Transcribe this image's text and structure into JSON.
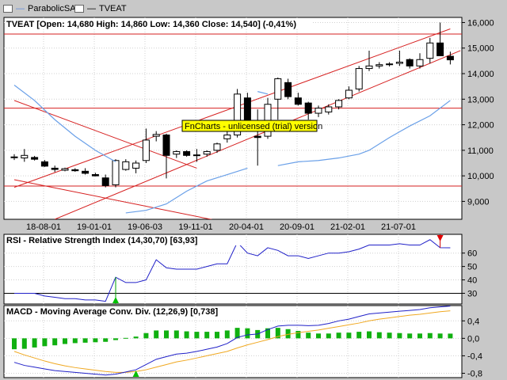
{
  "legend": {
    "items": [
      {
        "label": "ParabolicSAR",
        "color": "#6aa0e8"
      },
      {
        "label": "TVEAT",
        "color": "#000000"
      }
    ]
  },
  "watermark": "FnCharts - unlicensed (trial) version",
  "chart_data": [
    {
      "type": "candlestick",
      "title": "TVEAT [Open: 14,680  High: 14,860  Low: 14,360  Close: 14,540]  (-0,41%)",
      "ylim": [
        8.3,
        16.2
      ],
      "yticks": [
        "9,000",
        "10,000",
        "11,000",
        "12,000",
        "13,000",
        "14,000",
        "15,000",
        "16,000"
      ],
      "xticks": [
        "18-08-01",
        "19-01-01",
        "19-06-03",
        "19-11-01",
        "20-04-01",
        "20-09-01",
        "21-02-01",
        "21-07-01"
      ],
      "candles": [
        {
          "o": 10.72,
          "h": 10.85,
          "l": 10.62,
          "c": 10.74
        },
        {
          "o": 10.7,
          "h": 11.05,
          "l": 10.55,
          "c": 10.8
        },
        {
          "o": 10.72,
          "h": 10.78,
          "l": 10.6,
          "c": 10.65
        },
        {
          "o": 10.55,
          "h": 10.62,
          "l": 10.35,
          "c": 10.38
        },
        {
          "o": 10.3,
          "h": 10.4,
          "l": 10.15,
          "c": 10.25
        },
        {
          "o": 10.22,
          "h": 10.32,
          "l": 10.18,
          "c": 10.28
        },
        {
          "o": 10.24,
          "h": 10.3,
          "l": 10.16,
          "c": 10.2
        },
        {
          "o": 10.18,
          "h": 10.3,
          "l": 10.05,
          "c": 10.1
        },
        {
          "o": 10.05,
          "h": 10.12,
          "l": 9.98,
          "c": 10.0
        },
        {
          "o": 9.92,
          "h": 10.05,
          "l": 9.55,
          "c": 9.62
        },
        {
          "o": 9.65,
          "h": 10.65,
          "l": 9.55,
          "c": 10.6
        },
        {
          "o": 10.25,
          "h": 10.65,
          "l": 10.2,
          "c": 10.55
        },
        {
          "o": 10.3,
          "h": 10.6,
          "l": 10.1,
          "c": 10.5
        },
        {
          "o": 10.6,
          "h": 11.85,
          "l": 10.5,
          "c": 11.4
        },
        {
          "o": 11.55,
          "h": 11.75,
          "l": 11.35,
          "c": 11.62
        },
        {
          "o": 11.6,
          "h": 11.65,
          "l": 9.9,
          "c": 10.8
        },
        {
          "o": 10.85,
          "h": 11.0,
          "l": 10.7,
          "c": 10.95
        },
        {
          "o": 10.95,
          "h": 11.0,
          "l": 10.75,
          "c": 10.8
        },
        {
          "o": 10.82,
          "h": 11.05,
          "l": 10.55,
          "c": 10.8
        },
        {
          "o": 10.85,
          "h": 11.0,
          "l": 10.75,
          "c": 10.95
        },
        {
          "o": 11.0,
          "h": 11.3,
          "l": 10.9,
          "c": 11.25
        },
        {
          "o": 11.45,
          "h": 11.85,
          "l": 11.3,
          "c": 11.6
        },
        {
          "o": 11.6,
          "h": 13.4,
          "l": 11.5,
          "c": 13.2
        },
        {
          "o": 13.05,
          "h": 13.25,
          "l": 11.95,
          "c": 12.0
        },
        {
          "o": 11.55,
          "h": 12.6,
          "l": 10.4,
          "c": 11.5
        },
        {
          "o": 11.55,
          "h": 13.05,
          "l": 11.45,
          "c": 12.8
        },
        {
          "o": 13.0,
          "h": 13.85,
          "l": 12.2,
          "c": 13.8
        },
        {
          "o": 13.65,
          "h": 13.8,
          "l": 13.0,
          "c": 13.1
        },
        {
          "o": 13.05,
          "h": 13.25,
          "l": 12.75,
          "c": 12.8
        },
        {
          "o": 12.85,
          "h": 12.9,
          "l": 12.2,
          "c": 12.45
        },
        {
          "o": 12.45,
          "h": 12.75,
          "l": 12.3,
          "c": 12.65
        },
        {
          "o": 12.5,
          "h": 12.8,
          "l": 12.4,
          "c": 12.7
        },
        {
          "o": 12.7,
          "h": 13.0,
          "l": 12.6,
          "c": 12.95
        },
        {
          "o": 13.05,
          "h": 13.5,
          "l": 13.0,
          "c": 13.35
        },
        {
          "o": 13.4,
          "h": 14.3,
          "l": 13.3,
          "c": 14.2
        },
        {
          "o": 14.2,
          "h": 14.9,
          "l": 14.1,
          "c": 14.3
        },
        {
          "o": 14.3,
          "h": 14.45,
          "l": 14.2,
          "c": 14.35
        },
        {
          "o": 14.35,
          "h": 14.45,
          "l": 14.28,
          "c": 14.38
        },
        {
          "o": 14.4,
          "h": 14.9,
          "l": 14.3,
          "c": 14.45
        },
        {
          "o": 14.55,
          "h": 14.6,
          "l": 14.2,
          "c": 14.3
        },
        {
          "o": 14.3,
          "h": 14.8,
          "l": 14.2,
          "c": 14.55
        },
        {
          "o": 14.6,
          "h": 15.4,
          "l": 14.4,
          "c": 15.2
        },
        {
          "o": 15.2,
          "h": 16.0,
          "l": 14.7,
          "c": 14.7
        },
        {
          "o": 14.68,
          "h": 14.86,
          "l": 14.36,
          "c": 14.54
        }
      ],
      "sar": [
        [
          0,
          13.55
        ],
        [
          2,
          12.95
        ],
        [
          4,
          12.2
        ],
        [
          6,
          11.55
        ],
        [
          8,
          11.0
        ],
        [
          10,
          10.55
        ],
        [
          11,
          8.55
        ],
        [
          13,
          8.65
        ],
        [
          15,
          8.9
        ],
        [
          17,
          9.4
        ],
        [
          19,
          9.8
        ],
        [
          21,
          10.05
        ],
        [
          23,
          10.3
        ],
        [
          24,
          13.3
        ],
        [
          25,
          13.2
        ],
        [
          26,
          10.4
        ],
        [
          28,
          10.55
        ],
        [
          30,
          10.6
        ],
        [
          32,
          10.7
        ],
        [
          34,
          10.85
        ],
        [
          35,
          11.0
        ],
        [
          37,
          11.5
        ],
        [
          39,
          11.95
        ],
        [
          41,
          12.35
        ],
        [
          43,
          12.95
        ]
      ],
      "hlines": [
        15.55,
        12.65,
        9.6
      ],
      "trendlines": [
        {
          "a": [
            0,
            9.55
          ],
          "b": [
            43,
            15.75
          ]
        },
        {
          "a": [
            4,
            8.3
          ],
          "b": [
            44,
            14.9
          ]
        },
        {
          "a": [
            0,
            12.95
          ],
          "b": [
            18,
            10.3
          ]
        },
        {
          "a": [
            0,
            9.85
          ],
          "b": [
            20,
            8.25
          ]
        }
      ]
    },
    {
      "type": "line",
      "title": "RSI - Relative Strength Index (14,30,70) [63,93]",
      "ylim": [
        22,
        74
      ],
      "yticks": [
        "30",
        "40",
        "50",
        "60"
      ],
      "levels": [
        30
      ],
      "series": [
        {
          "values": [
            30,
            30,
            30,
            28,
            27,
            26,
            26,
            25,
            25,
            24,
            42,
            38,
            38,
            40,
            55,
            49,
            48,
            48,
            48,
            50,
            52,
            52,
            68,
            60,
            58,
            64,
            62,
            58,
            58,
            56,
            58,
            60,
            60,
            61,
            63,
            66,
            66,
            66,
            67,
            66,
            66,
            70,
            64,
            63.93
          ]
        }
      ],
      "signals": [
        {
          "type": "buy",
          "index": 10
        },
        {
          "type": "sell",
          "index": 42
        }
      ]
    },
    {
      "type": "macd",
      "title": "MACD - Moving Average Conv. Div. (12,26,9) [0,738]",
      "ylim": [
        -0.9,
        0.75
      ],
      "yticks": [
        "0,4",
        "0,0",
        "-0,4",
        "-0,8"
      ],
      "macd": [
        -0.55,
        -0.62,
        -0.66,
        -0.7,
        -0.74,
        -0.76,
        -0.78,
        -0.8,
        -0.82,
        -0.84,
        -0.82,
        -0.77,
        -0.72,
        -0.6,
        -0.48,
        -0.42,
        -0.36,
        -0.34,
        -0.3,
        -0.25,
        -0.2,
        -0.12,
        0.02,
        0.08,
        0.1,
        0.2,
        0.28,
        0.3,
        0.3,
        0.29,
        0.3,
        0.34,
        0.4,
        0.44,
        0.5,
        0.56,
        0.58,
        0.6,
        0.62,
        0.64,
        0.66,
        0.7,
        0.72,
        0.738
      ],
      "signal": [
        -0.3,
        -0.38,
        -0.45,
        -0.52,
        -0.58,
        -0.63,
        -0.67,
        -0.7,
        -0.73,
        -0.76,
        -0.78,
        -0.78,
        -0.76,
        -0.72,
        -0.66,
        -0.6,
        -0.54,
        -0.5,
        -0.45,
        -0.4,
        -0.35,
        -0.3,
        -0.22,
        -0.15,
        -0.09,
        -0.03,
        0.04,
        0.09,
        0.13,
        0.16,
        0.19,
        0.23,
        0.27,
        0.31,
        0.35,
        0.4,
        0.44,
        0.47,
        0.5,
        0.53,
        0.55,
        0.58,
        0.61,
        0.63
      ],
      "histogram": [
        -0.25,
        -0.24,
        -0.21,
        -0.18,
        -0.16,
        -0.13,
        -0.11,
        -0.1,
        -0.09,
        -0.08,
        -0.04,
        0.01,
        0.04,
        0.12,
        0.18,
        0.18,
        0.18,
        0.16,
        0.15,
        0.15,
        0.15,
        0.18,
        0.24,
        0.23,
        0.19,
        0.23,
        0.24,
        0.21,
        0.17,
        0.13,
        0.11,
        0.11,
        0.13,
        0.13,
        0.15,
        0.16,
        0.14,
        0.13,
        0.12,
        0.11,
        0.11,
        0.12,
        0.11,
        0.108
      ],
      "signals": [
        {
          "type": "buy",
          "index": 12
        }
      ]
    }
  ]
}
